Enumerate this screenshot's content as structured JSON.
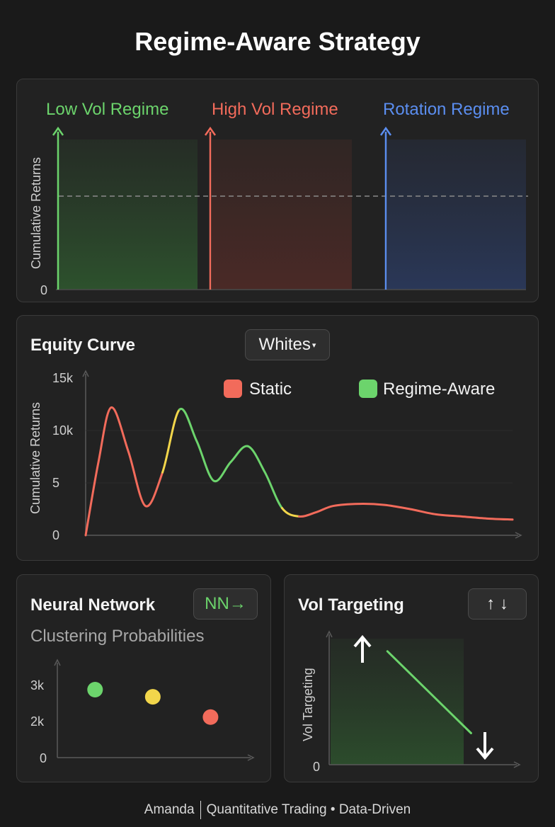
{
  "page": {
    "title": "Regime-Aware Strategy"
  },
  "colors": {
    "low_vol": "#6cd46c",
    "high_vol": "#f26b5b",
    "rotation": "#5b8ef0",
    "yellow": "#f2d64b"
  },
  "chart_data": [
    {
      "type": "area",
      "ylabel": "Cumulative Returns",
      "y_ticks": [
        "0"
      ],
      "regimes": [
        {
          "name": "Low Vol Regime",
          "color": "#6cd46c"
        },
        {
          "name": "High Vol Regime",
          "color": "#f26b5b"
        },
        {
          "name": "Rotation Regime",
          "color": "#5b8ef0"
        }
      ],
      "reference_line": "dashed"
    },
    {
      "type": "line",
      "title": "Equity Curve",
      "dropdown": "Whites",
      "ylabel": "Cumulative Returns",
      "y_ticks": [
        "0",
        "5",
        "10k",
        "15k"
      ],
      "ylim": [
        0,
        15
      ],
      "legend": [
        {
          "name": "Static",
          "color": "#f26b5b"
        },
        {
          "name": "Regime-Aware",
          "color": "#6cd46c"
        }
      ],
      "x": [
        0,
        0.3,
        0.6,
        1,
        1.4,
        1.8,
        2.2,
        2.6,
        3,
        3.4,
        3.8,
        4.2,
        4.6,
        5,
        5.4,
        5.8,
        6.4,
        7,
        7.6,
        8.2,
        8.8,
        9.4,
        10
      ],
      "values": [
        0,
        7,
        12.2,
        8,
        2.8,
        6,
        12,
        9,
        5.2,
        7,
        8.5,
        6,
        2.6,
        1.8,
        2.2,
        2.8,
        3.0,
        2.9,
        2.5,
        2.0,
        1.8,
        1.6,
        1.5
      ],
      "segments": [
        {
          "from": 0,
          "to": 5,
          "color": "#f26b5b"
        },
        {
          "from": 5,
          "to": 6,
          "color": "#f2d64b"
        },
        {
          "from": 6,
          "to": 10,
          "color": "#6cd46c"
        },
        {
          "from": 10,
          "to": 12,
          "color": "#6cd46c"
        },
        {
          "from": 12,
          "to": 13,
          "color": "#f2d64b"
        },
        {
          "from": 13,
          "to": 22,
          "color": "#f26b5b"
        }
      ]
    },
    {
      "type": "scatter",
      "title": "Neural Network",
      "badge": "NN→",
      "subtitle": "Clustering Probabilities",
      "y_ticks": [
        "0",
        "2k",
        "3k"
      ],
      "ylim": [
        0,
        3.8
      ],
      "xlim": [
        0,
        10
      ],
      "points": [
        {
          "x": 1.0,
          "y": 2.85,
          "color": "#6cd46c"
        },
        {
          "x": 4.5,
          "y": 2.55,
          "color": "#f2d64b"
        },
        {
          "x": 8.0,
          "y": 1.7,
          "color": "#f26b5b"
        }
      ]
    },
    {
      "type": "line",
      "title": "Vol Targeting",
      "badge": "↑ ↓",
      "ylabel": "Vol Targeting",
      "y_ticks": [
        "0"
      ],
      "ylim": [
        0,
        10
      ],
      "xlim": [
        0,
        10
      ],
      "x": [
        3.2,
        7.8
      ],
      "values": [
        9.0,
        2.5
      ]
    }
  ],
  "footer": {
    "author": "Amanda",
    "tagline": "Quantitative Trading • Data-Driven"
  }
}
